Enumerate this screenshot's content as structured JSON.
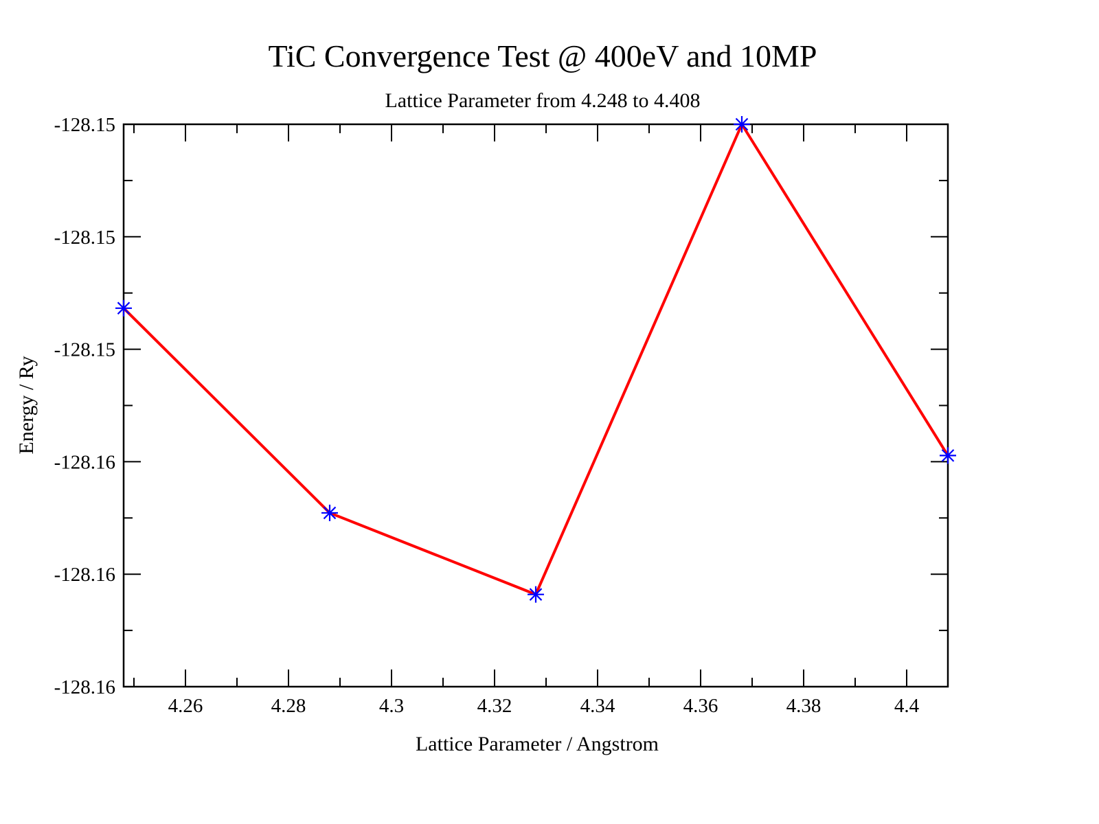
{
  "chart_data": {
    "type": "line",
    "title": "TiC Convergence Test @ 400eV and 10MP",
    "subtitle": "Lattice Parameter from 4.248 to 4.408",
    "xlabel": "Lattice Parameter / Angstrom",
    "ylabel": "Energy / Ry",
    "xlim": [
      4.248,
      4.408
    ],
    "ylim": [
      -128.16,
      -128.15
    ],
    "grid": false,
    "legend": "none",
    "x_ticks": [
      {
        "value": 4.26,
        "label": "4.26"
      },
      {
        "value": 4.28,
        "label": "4.28"
      },
      {
        "value": 4.3,
        "label": "4.3"
      },
      {
        "value": 4.32,
        "label": "4.32"
      },
      {
        "value": 4.34,
        "label": "4.34"
      },
      {
        "value": 4.36,
        "label": "4.36"
      },
      {
        "value": 4.38,
        "label": "4.38"
      },
      {
        "value": 4.4,
        "label": "4.4"
      }
    ],
    "x_minor_ticks": [
      4.25,
      4.27,
      4.29,
      4.31,
      4.33,
      4.35,
      4.37,
      4.39
    ],
    "y_ticks": [
      {
        "value": -128.15,
        "label": "-128.15"
      },
      {
        "value": -128.152,
        "label": "-128.15"
      },
      {
        "value": -128.154,
        "label": "-128.15"
      },
      {
        "value": -128.156,
        "label": "-128.16"
      },
      {
        "value": -128.158,
        "label": "-128.16"
      },
      {
        "value": -128.16,
        "label": "-128.16"
      }
    ],
    "y_minor_ticks": [
      -128.151,
      -128.153,
      -128.155,
      -128.157,
      -128.159
    ],
    "series": [
      {
        "name": "Energy",
        "line_color": "#ff0000",
        "marker_color": "#0000ff",
        "marker": "asterisk",
        "x": [
          4.248,
          4.288,
          4.328,
          4.368,
          4.408
        ],
        "y": [
          -128.15327,
          -128.15691,
          -128.15836,
          -128.15,
          -128.15589
        ]
      }
    ]
  }
}
